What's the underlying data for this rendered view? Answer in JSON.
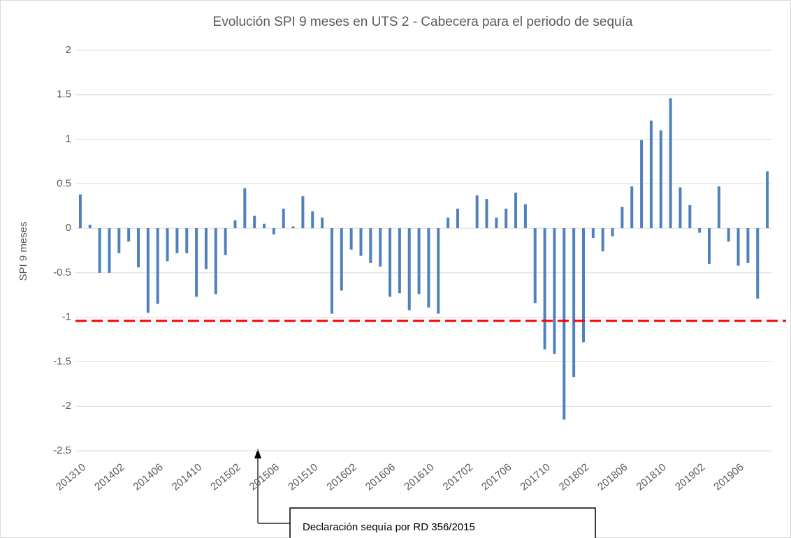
{
  "chart_data": {
    "type": "bar",
    "title": "Evolución SPI 9 meses en UTS 2 - Cabecera  para el periodo de sequía",
    "y_label": "SPI 9 meses",
    "categories": [
      "201310",
      null,
      null,
      null,
      "201402",
      null,
      null,
      null,
      "201406",
      null,
      null,
      null,
      "201410",
      null,
      null,
      null,
      "201502",
      null,
      null,
      null,
      "201506",
      null,
      null,
      null,
      "201510",
      null,
      null,
      null,
      "201602",
      null,
      null,
      null,
      "201606",
      null,
      null,
      null,
      "201610",
      null,
      null,
      null,
      "201702",
      null,
      null,
      null,
      "201706",
      null,
      null,
      null,
      "201710",
      null,
      null,
      null,
      "201802",
      null,
      null,
      null,
      "201806",
      null,
      null,
      null,
      "201810",
      null,
      null,
      null,
      "201902",
      null,
      null,
      null,
      "201906",
      null,
      null,
      null
    ],
    "values": [
      0.38,
      0.04,
      -0.5,
      -0.5,
      -0.28,
      -0.15,
      -0.44,
      -0.95,
      -0.85,
      -0.37,
      -0.28,
      -0.28,
      -0.77,
      -0.46,
      -0.74,
      -0.3,
      0.09,
      0.45,
      0.14,
      0.05,
      -0.07,
      0.22,
      0.02,
      0.36,
      0.19,
      0.12,
      -0.96,
      -0.7,
      -0.24,
      -0.31,
      -0.39,
      -0.43,
      -0.77,
      -0.73,
      -0.92,
      -0.74,
      -0.89,
      -0.96,
      0.12,
      0.22,
      0,
      0.37,
      0.33,
      0.12,
      0.22,
      0.4,
      0.27,
      -0.84,
      -1.36,
      -1.41,
      -2.15,
      -1.67,
      -1.28,
      -0.11,
      -0.26,
      -0.09,
      0.24,
      0.47,
      0.99,
      1.21,
      1.1,
      1.46,
      0.46,
      0.26,
      -0.05,
      -0.4,
      0.47,
      -0.15,
      -0.42,
      -0.39,
      -0.79,
      0.64
    ],
    "color": "#4f81bd",
    "ylim": [
      -2.5,
      2
    ],
    "yticks": [
      -2.5,
      -2,
      -1.5,
      -1,
      -0.5,
      0,
      0.5,
      1,
      1.5,
      2
    ],
    "grid": true,
    "reference_line": {
      "value": -1.04,
      "color": "#ff0000"
    },
    "annotation": "Declaración sequía por RD 356/2015"
  }
}
